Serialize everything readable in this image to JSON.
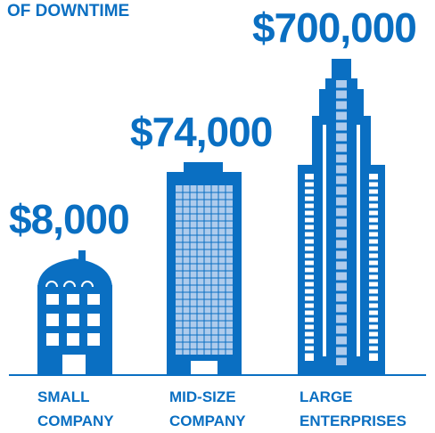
{
  "title": "OF DOWNTIME",
  "items": [
    {
      "value": "$8,000",
      "label": [
        "SMALL",
        "COMPANY"
      ]
    },
    {
      "value": "$74,000",
      "label": [
        "MID-SIZE",
        "COMPANY"
      ]
    },
    {
      "value": "$700,000",
      "label": [
        "LARGE",
        "ENTERPRISES"
      ]
    }
  ]
}
